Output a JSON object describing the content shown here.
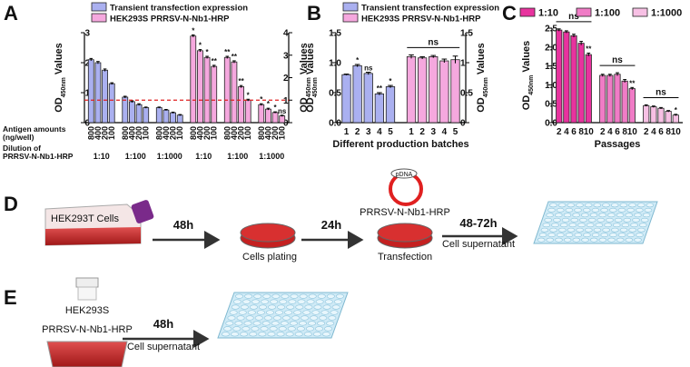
{
  "panel_labels": [
    "A",
    "B",
    "C",
    "D",
    "E"
  ],
  "chart_data": [
    {
      "type": "bar",
      "categories": [
        "800",
        "400",
        "200",
        "100",
        "800",
        "400",
        "200",
        "100",
        "800",
        "400",
        "200",
        "100",
        "800",
        "400",
        "200",
        "100",
        "800",
        "400",
        "200",
        "100",
        "800",
        "400",
        "200",
        "100"
      ],
      "group_labels": [
        "1:10",
        "1:100",
        "1:1000",
        "1:10",
        "1:100",
        "1:1000"
      ],
      "x_notes": [
        "Antigen amounts",
        "(ng/well)",
        "Dilution of",
        "PRRSV-N-Nb1-HRP"
      ],
      "xtick_rotation": 90,
      "legend": "top-left",
      "ylabel": {
        "main": "OD",
        "sub": "450nm",
        "rest": " Values"
      },
      "y2label": {
        "main": "OD",
        "sub": "450nm",
        "rest": " Values"
      },
      "ylim": [
        0,
        3
      ],
      "yticks": [
        0,
        1,
        2,
        3
      ],
      "y2lim": [
        0,
        4
      ],
      "y2ticks": [
        0,
        1,
        2,
        3,
        4
      ],
      "reference_line": {
        "value": 1,
        "axis": "y2",
        "color": "#e02020"
      },
      "series": [
        {
          "name": "Transient transfection expression",
          "color": "#aab0f0",
          "values": [
            2.1,
            2.0,
            1.75,
            1.3,
            0.85,
            0.7,
            0.6,
            0.5,
            0.5,
            0.42,
            0.33,
            0.25,
            null,
            null,
            null,
            null,
            null,
            null,
            null,
            null,
            null,
            null,
            null,
            null
          ],
          "errors": [
            0.04,
            0.04,
            0.04,
            0.03,
            0.03,
            0.03,
            0.03,
            0.02,
            0.02,
            0.02,
            0.02,
            0.02,
            null,
            null,
            null,
            null,
            null,
            null,
            null,
            null,
            null,
            null,
            null,
            null
          ],
          "significance": [
            null,
            null,
            null,
            null,
            null,
            null,
            null,
            null,
            null,
            null,
            null,
            null,
            null,
            null,
            null,
            null,
            null,
            null,
            null,
            null,
            null,
            null,
            null,
            null
          ]
        },
        {
          "name": "HEK293S PRRSV-N-Nb1-HRP",
          "color": "#f5a8de",
          "axis": "y2",
          "values": [
            null,
            null,
            null,
            null,
            null,
            null,
            null,
            null,
            null,
            null,
            null,
            null,
            3.85,
            3.2,
            2.9,
            2.5,
            2.9,
            2.7,
            1.6,
            1.0,
            0.8,
            0.6,
            0.45,
            0.3
          ],
          "errors": [
            null,
            null,
            null,
            null,
            null,
            null,
            null,
            null,
            null,
            null,
            null,
            null,
            0.05,
            0.05,
            0.05,
            0.05,
            0.05,
            0.05,
            0.05,
            0.04,
            0.04,
            0.04,
            0.03,
            0.03
          ],
          "significance": [
            null,
            null,
            null,
            null,
            null,
            null,
            null,
            null,
            null,
            null,
            null,
            null,
            "*",
            "*",
            "*",
            "**",
            "**",
            "**",
            "**",
            "*",
            "*",
            "*",
            "*",
            "ns"
          ]
        }
      ]
    },
    {
      "type": "bar",
      "categories": [
        "1",
        "2",
        "3",
        "4",
        "5",
        "1",
        "2",
        "3",
        "4",
        "5"
      ],
      "legend": "top-left",
      "xlabel": "Different production batches",
      "ylabel": {
        "main": "OD",
        "sub": "450nm",
        "rest": " Values"
      },
      "y2label": {
        "main": "OD",
        "sub": "450nm",
        "rest": " Values"
      },
      "ylim": [
        0,
        1.5
      ],
      "yticks": [
        {
          "value": 0,
          "label": "0.0"
        },
        0.5,
        {
          "value": 1,
          "label": "1.0"
        },
        1.5
      ],
      "y2lim": [
        0,
        1.5
      ],
      "y2ticks": [
        0,
        0.5,
        1,
        1.5
      ],
      "group_annotations": [
        {
          "text": "ns",
          "series": 1
        }
      ],
      "series": [
        {
          "name": "Transient transfection expression",
          "color": "#aab0f0",
          "values": [
            0.8,
            0.95,
            0.82,
            0.48,
            0.6,
            null,
            null,
            null,
            null,
            null
          ],
          "errors": [
            0.01,
            0.02,
            0.02,
            0.02,
            0.02,
            null,
            null,
            null,
            null,
            null
          ],
          "significance": [
            null,
            "*",
            "ns",
            "**",
            "*",
            null,
            null,
            null,
            null,
            null
          ]
        },
        {
          "name": "HEK293S PRRSV-N-Nb1-HRP",
          "color": "#f5a8de",
          "axis": "y2",
          "values": [
            null,
            null,
            null,
            null,
            null,
            1.1,
            1.08,
            1.1,
            1.03,
            1.05
          ],
          "errors": [
            null,
            null,
            null,
            null,
            null,
            0.03,
            0.02,
            0.02,
            0.03,
            0.06
          ],
          "significance": [
            null,
            null,
            null,
            null,
            null,
            null,
            null,
            null,
            null,
            null
          ]
        }
      ]
    },
    {
      "type": "bar",
      "categories": [
        "2",
        "4",
        "6",
        "8",
        "10",
        "2",
        "4",
        "6",
        "8",
        "10",
        "2",
        "4",
        "6",
        "8",
        "10"
      ],
      "legend": "top",
      "xlabel": "Passages",
      "ylabel": {
        "main": "OD",
        "sub": "450nm",
        "rest": " Values"
      },
      "ylim": [
        0,
        2.5
      ],
      "yticks": [
        {
          "value": 0,
          "label": "0.0"
        },
        0.5,
        {
          "value": 1,
          "label": "1.0"
        },
        1.5,
        {
          "value": 2,
          "label": "2.0"
        },
        2.5
      ],
      "group_annotations": [
        {
          "text": "ns",
          "series": 0
        },
        {
          "text": "ns",
          "series": 1
        },
        {
          "text": "ns",
          "series": 2
        }
      ],
      "series": [
        {
          "name": "1:10",
          "color": "#e8339e",
          "values": [
            2.45,
            2.4,
            2.3,
            2.1,
            1.8,
            null,
            null,
            null,
            null,
            null,
            null,
            null,
            null,
            null,
            null
          ],
          "errors": [
            0.03,
            0.03,
            0.04,
            0.05,
            0.04,
            null,
            null,
            null,
            null,
            null,
            null,
            null,
            null,
            null,
            null
          ],
          "significance": [
            null,
            null,
            null,
            null,
            "**",
            null,
            null,
            null,
            null,
            null,
            null,
            null,
            null,
            null,
            null
          ]
        },
        {
          "name": "1:100",
          "color": "#f07cc6",
          "values": [
            null,
            null,
            null,
            null,
            null,
            1.25,
            1.25,
            1.28,
            1.1,
            0.9,
            null,
            null,
            null,
            null,
            null
          ],
          "errors": [
            null,
            null,
            null,
            null,
            null,
            0.03,
            0.03,
            0.04,
            0.04,
            0.03,
            null,
            null,
            null,
            null,
            null
          ],
          "significance": [
            null,
            null,
            null,
            null,
            null,
            null,
            null,
            null,
            null,
            "**",
            null,
            null,
            null,
            null,
            null
          ]
        },
        {
          "name": "1:1000",
          "color": "#f7c0e4",
          "values": [
            null,
            null,
            null,
            null,
            null,
            null,
            null,
            null,
            null,
            null,
            0.45,
            0.42,
            0.38,
            0.3,
            0.2
          ],
          "errors": [
            null,
            null,
            null,
            null,
            null,
            null,
            null,
            null,
            null,
            null,
            0.02,
            0.02,
            0.02,
            0.02,
            0.02
          ],
          "significance": [
            null,
            null,
            null,
            null,
            null,
            null,
            null,
            null,
            null,
            null,
            null,
            null,
            null,
            null,
            "*"
          ]
        }
      ]
    }
  ],
  "diagram": {
    "D": {
      "cells": "HEK293T Cells",
      "steps": [
        {
          "time": "48h",
          "label": "Cells plating"
        },
        {
          "time": "24h",
          "label": "Transfection"
        },
        {
          "time": "48-72h",
          "label": "Cell supernatant"
        }
      ],
      "plasmid": "pDNA",
      "construct": "PRRSV-N-Nb1-HRP"
    },
    "E": {
      "cells": [
        "HEK293S",
        "PRRSV-N-Nb1-HRP"
      ],
      "time": "48h",
      "label": "Cell supernatant"
    }
  }
}
